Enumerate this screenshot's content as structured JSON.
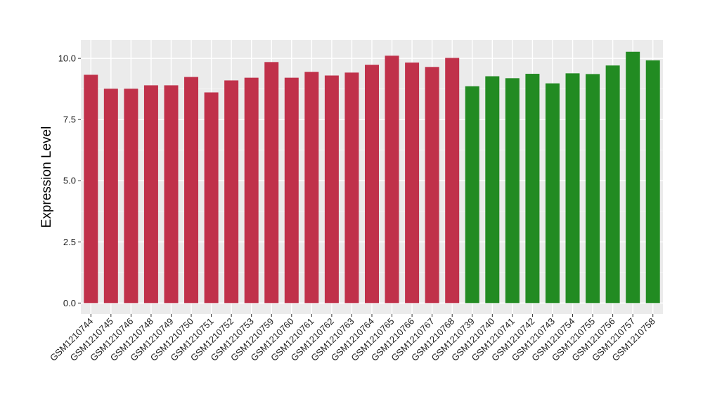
{
  "chart_data": {
    "type": "bar",
    "title": "",
    "xlabel": "",
    "ylabel": "Expression Level",
    "ylim": [
      -0.45,
      10.75
    ],
    "yticks": [
      0.0,
      2.5,
      5.0,
      7.5,
      10.0
    ],
    "ytick_labels": [
      "0.0",
      "2.5",
      "5.0",
      "7.5",
      "10.0"
    ],
    "grid": true,
    "legend": "none",
    "panel_background": "#ebebeb",
    "categories": [
      "GSM1210744",
      "GSM1210745",
      "GSM1210746",
      "GSM1210748",
      "GSM1210749",
      "GSM1210750",
      "GSM1210751",
      "GSM1210752",
      "GSM1210753",
      "GSM1210759",
      "GSM1210760",
      "GSM1210761",
      "GSM1210762",
      "GSM1210763",
      "GSM1210764",
      "GSM1210765",
      "GSM1210766",
      "GSM1210767",
      "GSM1210768",
      "GSM1210739",
      "GSM1210740",
      "GSM1210741",
      "GSM1210742",
      "GSM1210743",
      "GSM1210754",
      "GSM1210755",
      "GSM1210756",
      "GSM1210757",
      "GSM1210758"
    ],
    "values": [
      9.33,
      8.76,
      8.76,
      8.9,
      8.9,
      9.24,
      8.61,
      9.1,
      9.21,
      9.85,
      9.21,
      9.45,
      9.3,
      9.42,
      9.74,
      10.11,
      9.83,
      9.65,
      10.02,
      8.86,
      9.27,
      9.19,
      9.37,
      8.98,
      9.39,
      9.36,
      9.71,
      10.27,
      9.92
    ],
    "bar_colors": [
      "#c0314a",
      "#c0314a",
      "#c0314a",
      "#c0314a",
      "#c0314a",
      "#c0314a",
      "#c0314a",
      "#c0314a",
      "#c0314a",
      "#c0314a",
      "#c0314a",
      "#c0314a",
      "#c0314a",
      "#c0314a",
      "#c0314a",
      "#c0314a",
      "#c0314a",
      "#c0314a",
      "#c0314a",
      "#228b22",
      "#228b22",
      "#228b22",
      "#228b22",
      "#228b22",
      "#228b22",
      "#228b22",
      "#228b22",
      "#228b22",
      "#228b22"
    ]
  }
}
